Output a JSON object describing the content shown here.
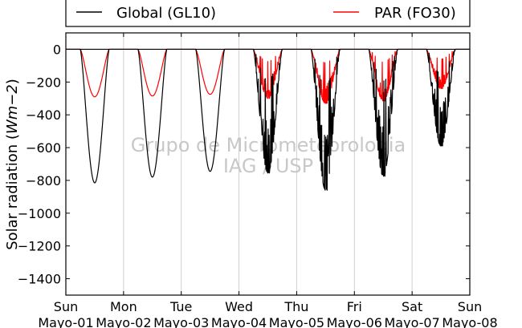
{
  "chart_data": {
    "type": "line",
    "ylabel_text": "Solar radiation (",
    "ylabel_unit": "Wm−2",
    "ylabel_close": ")",
    "ylim": [
      -1500,
      100
    ],
    "yticks": [
      0,
      -200,
      -400,
      -600,
      -800,
      -1000,
      -1200,
      -1400
    ],
    "xlim": [
      0,
      7
    ],
    "x_ticks": [
      {
        "day": "Sun",
        "date": "Mayo-01"
      },
      {
        "day": "Mon",
        "date": "Mayo-02"
      },
      {
        "day": "Tue",
        "date": "Mayo-03"
      },
      {
        "day": "Wed",
        "date": "Mayo-04"
      },
      {
        "day": "Thu",
        "date": "Mayo-05"
      },
      {
        "day": "Fri",
        "date": "Mayo-06"
      },
      {
        "day": "Sat",
        "date": "Mayo-07"
      },
      {
        "day": "Sun",
        "date": "Mayo-08"
      }
    ],
    "grid": "vertical",
    "legend_position": "top",
    "series": [
      {
        "name": "Global (GL10)",
        "color": "#000000",
        "daily_minima": [
          -815,
          -780,
          -745,
          -755,
          -860,
          -775,
          -590
        ]
      },
      {
        "name": "PAR (FO30)",
        "color": "#ff0000",
        "daily_minima": [
          -290,
          -285,
          -275,
          -300,
          -330,
          -315,
          -240
        ]
      }
    ],
    "watermark": [
      "Grupo de Micrometeorologia",
      "IAG / USP"
    ]
  }
}
